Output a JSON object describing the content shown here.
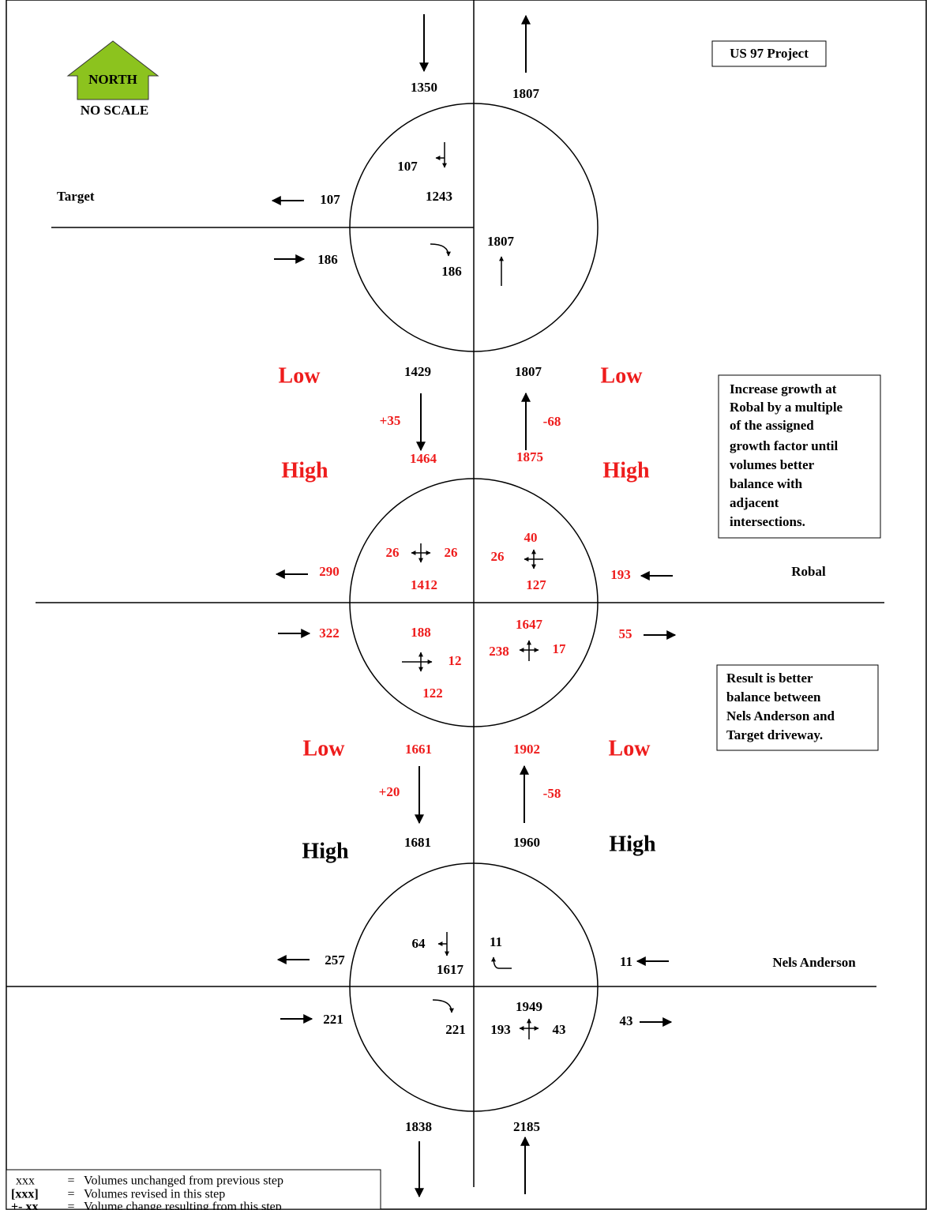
{
  "north_arrow": {
    "label": "NORTH",
    "note": "NO SCALE"
  },
  "project_label": "US 97 Project",
  "north_end": {
    "southbound": 1350,
    "northbound": 1807
  },
  "target": {
    "name": "Target",
    "west_out": 107,
    "sb_left": 107,
    "sb_through": 1243,
    "west_in": 186,
    "eb_right": 186,
    "nb_through": 1807
  },
  "segment_1": {
    "low_west": "Low",
    "low_east": "Low",
    "high_west": "High",
    "high_east": "High",
    "sb_low": 1429,
    "nb_low": 1807,
    "sb_change": "+35",
    "nb_change": "-68",
    "sb_high": 1464,
    "nb_high": 1875
  },
  "note_1": [
    "Increase growth at",
    "Robal by a multiple",
    "of the assigned",
    "growth factor until",
    "volumes better",
    "balance with",
    "adjacent",
    "intersections."
  ],
  "robal": {
    "name": "Robal",
    "sb_right": 26,
    "sb_left": 26,
    "sb_through": 1412,
    "wb_left": 40,
    "wb_through": 26,
    "wb_right": 127,
    "west_out": 290,
    "east_in": 193,
    "west_in": 322,
    "eb_left": 188,
    "eb_through": 12,
    "eb_right": 122,
    "nb_through": 1647,
    "nb_left": 238,
    "nb_right": 17,
    "east_out": 55
  },
  "note_2": [
    "Result is better",
    "balance between",
    "Nels Anderson and",
    "Target driveway."
  ],
  "segment_2": {
    "low_west": "Low",
    "low_east": "Low",
    "high_west": "High",
    "high_east": "High",
    "sb_low": 1661,
    "nb_low": 1902,
    "sb_change": "+20",
    "nb_change": "-58",
    "sb_high": 1681,
    "nb_high": 1960
  },
  "nels_anderson": {
    "name": "Nels Anderson",
    "sb_left": 64,
    "sb_through": 1617,
    "wb_left": 11,
    "west_out": 257,
    "east_in": 11,
    "west_in": 221,
    "eb_right": 221,
    "nb_through": 1949,
    "nb_left": 193,
    "nb_right": 43,
    "east_out": 43
  },
  "south_end": {
    "southbound": 1838,
    "northbound": 2185
  },
  "legend": [
    {
      "key": "xxx",
      "sep": "=",
      "text": "Volumes unchanged from previous step"
    },
    {
      "key": "[xxx]",
      "sep": "=",
      "text": "Volumes revised in this step"
    },
    {
      "key": "+- xx",
      "sep": "=",
      "text": "Volume change resulting from this step"
    }
  ]
}
